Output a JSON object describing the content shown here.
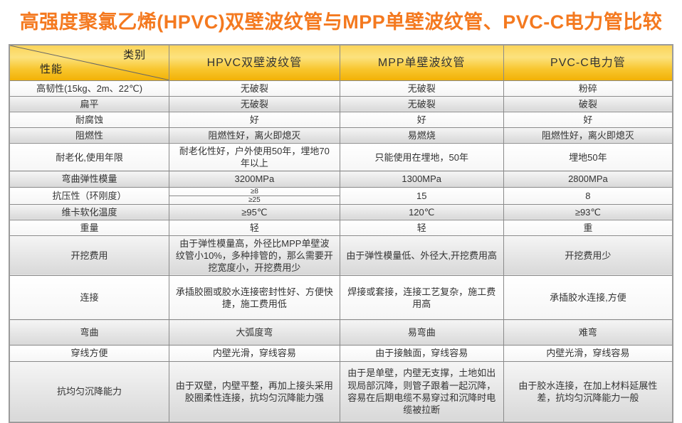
{
  "page": {
    "title": "高强度聚氯乙烯(HPVC)双壁波纹管与MPP单壁波纹管、PVC-C电力管比较"
  },
  "colors": {
    "title_orange": "#F4791F",
    "header_gold_top": "#FCE27E",
    "header_gold_bottom": "#F2B106",
    "stripe_gray": "#D8D8D8",
    "border_gray": "#8A8A8A"
  },
  "table": {
    "corner": {
      "top_right": "类别",
      "bottom_left": "性能"
    },
    "columns": [
      "HPVC双壁波纹管",
      "MPP单壁波纹管",
      "PVC-C电力管"
    ],
    "rows": [
      {
        "property": "高韧性(15kg、2m、22℃)",
        "hpvc": "无破裂",
        "mpp": "无破裂",
        "pvcc": "粉碎"
      },
      {
        "property": "扁平",
        "hpvc": "无破裂",
        "mpp": "无破裂",
        "pvcc": "破裂"
      },
      {
        "property": "耐腐蚀",
        "hpvc": "好",
        "mpp": "好",
        "pvcc": "好"
      },
      {
        "property": "阻燃性",
        "hpvc": "阻燃性好，离火即熄灭",
        "mpp": "易燃烧",
        "pvcc": "阻燃性好，离火即熄灭"
      },
      {
        "property": "耐老化,使用年限",
        "hpvc": "耐老化性好，户外使用50年，埋地70年以上",
        "mpp": "只能使用在埋地，50年",
        "pvcc": "埋地50年"
      },
      {
        "property": "弯曲弹性模量",
        "hpvc": "3200MPa",
        "mpp": "1300MPa",
        "pvcc": "2800MPa"
      },
      {
        "property": "抗压性（环刚度）",
        "hpvc": [
          "≥8",
          "≥25"
        ],
        "mpp": "15",
        "pvcc": "8"
      },
      {
        "property": "维卡软化温度",
        "hpvc": "≥95℃",
        "mpp": "120℃",
        "pvcc": "≥93℃"
      },
      {
        "property": "重量",
        "hpvc": "轻",
        "mpp": "轻",
        "pvcc": "重"
      },
      {
        "property": "开挖费用",
        "hpvc": "由于弹性模量高，外径比MPP单壁波纹管小10%，多种排管的，那么需要开挖宽度小，开挖费用少",
        "mpp": "由于弹性模量低、外径大,开挖费用高",
        "pvcc": "开挖费用少"
      },
      {
        "property": "连接",
        "hpvc": "承插胶圈或胶水连接密封性好、方便快捷，施工费用低",
        "mpp": "焊接或套接，连接工艺复杂，施工费用高",
        "pvcc": "承插胶水连接,方便"
      },
      {
        "property": "弯曲",
        "hpvc": "大弧度弯",
        "mpp": "易弯曲",
        "pvcc": "难弯"
      },
      {
        "property": "穿线方便",
        "hpvc": "内壁光滑，穿线容易",
        "mpp": "由于接触面，穿线容易",
        "pvcc": "内壁光滑，穿线容易"
      },
      {
        "property": "抗均匀沉降能力",
        "hpvc": "由于双壁，内壁平整，再加上接头采用胶圈柔性连接，抗均匀沉降能力强",
        "mpp": "由于是单壁，内壁无支撑，土地如出现局部沉降，则管子跟着一起沉降，容易在后期电缆不易穿过和沉降时电缆被拉断",
        "pvcc": "由于胶水连接，在加上材料延展性差，抗均匀沉降能力一般"
      }
    ]
  }
}
